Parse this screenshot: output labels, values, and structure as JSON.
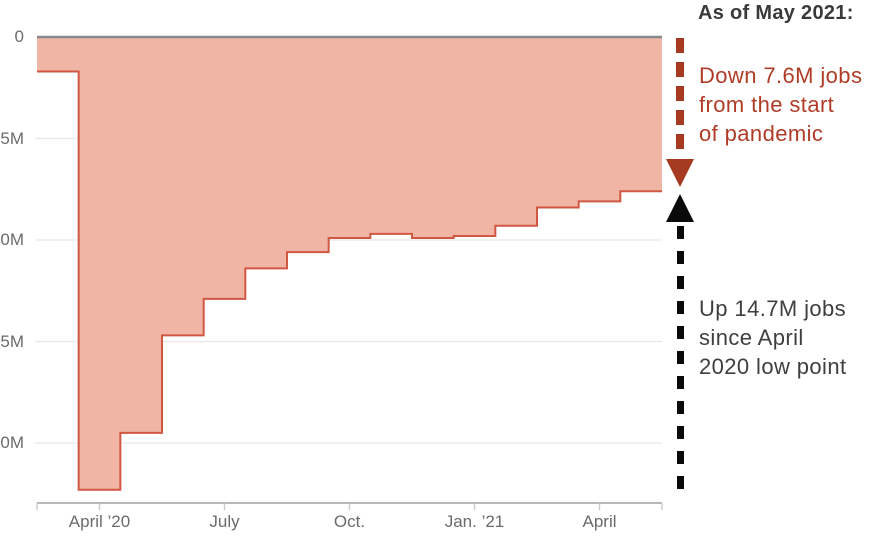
{
  "header": {
    "note": "As of May 2021:"
  },
  "annotations": {
    "down": {
      "lines": [
        "Down 7.6M jobs",
        "from the start",
        "of pandemic"
      ],
      "text_color": "#b03c27",
      "arrow_color": "#a53a20",
      "arrow_direction": "down"
    },
    "up": {
      "lines": [
        "Up 14.7M jobs",
        "since April",
        "2020 low point"
      ],
      "text_color": "#3f3f3f",
      "arrow_color": "#0a0a0a",
      "arrow_direction": "up"
    }
  },
  "chart_data": {
    "type": "area",
    "subtype": "step",
    "x": [
      "March 2020",
      "April 2020",
      "May 2020",
      "June 2020",
      "July 2020",
      "Aug. 2020",
      "Sep. 2020",
      "Oct. 2020",
      "Nov. 2020",
      "Dec. 2020",
      "Jan. 2021",
      "Feb. 2021",
      "March 2021",
      "April 2021",
      "May 2021"
    ],
    "values": [
      -1.7,
      -22.3,
      -19.5,
      -14.7,
      -12.9,
      -11.4,
      -10.6,
      -9.9,
      -9.7,
      -9.9,
      -9.8,
      -9.3,
      -8.4,
      -8.1,
      -7.6
    ],
    "ylim": [
      -23.1,
      0
    ],
    "grid": true,
    "legend": "none",
    "y_ticks": [
      {
        "value": 0,
        "label": "0"
      },
      {
        "value": -5,
        "label": "5M"
      },
      {
        "value": -10,
        "label": "0M"
      },
      {
        "value": -15,
        "label": "5M"
      },
      {
        "value": -20,
        "label": "0M"
      }
    ],
    "x_ticks": [
      {
        "month_index": 1,
        "label": "April ’20"
      },
      {
        "month_index": 4,
        "label": "July"
      },
      {
        "month_index": 7,
        "label": "Oct."
      },
      {
        "month_index": 10,
        "label": "Jan. ’21"
      },
      {
        "month_index": 13,
        "label": "April"
      }
    ],
    "colors": {
      "fill": "#f1b5a6",
      "stroke": "#d05742",
      "zero_line": "#898989",
      "gridline": "#e8e8e8",
      "axis_line": "#a0a0a0",
      "tick": "#c9c9c9",
      "axis_label": "#6b6b6b"
    }
  }
}
